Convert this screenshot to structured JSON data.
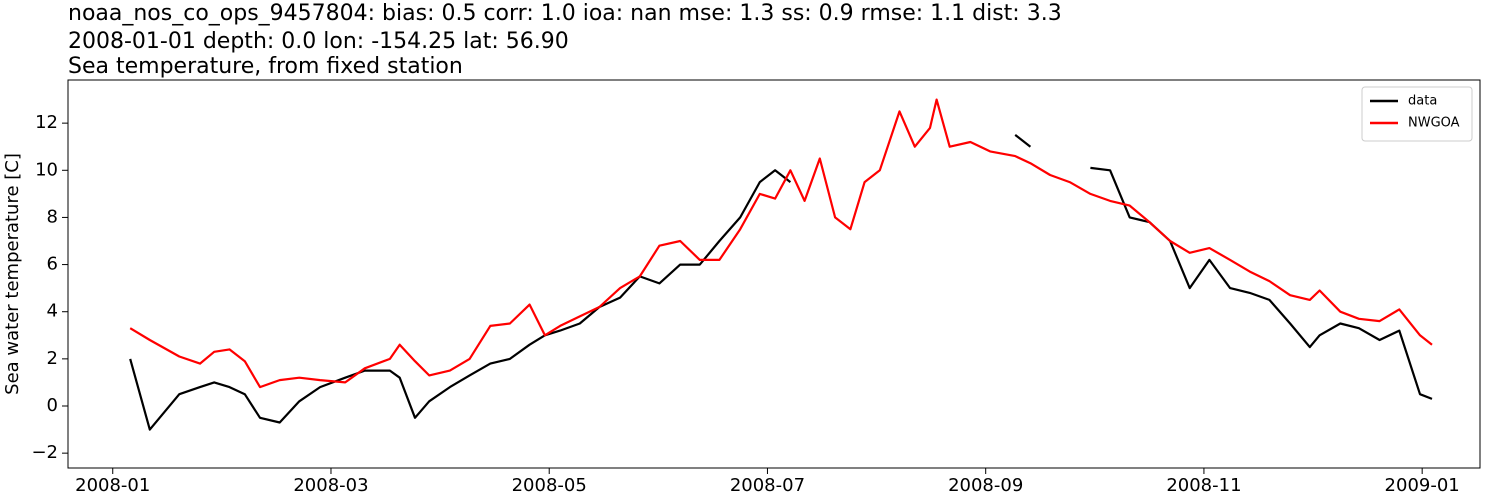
{
  "chart_data": {
    "type": "line",
    "title": [
      "noaa_nos_co_ops_9457804: bias: 0.5  corr: 1.0  ioa: nan  mse: 1.3  ss: 0.9  rmse: 1.1  dist: 3.3",
      "2008-01-01 depth: 0.0 lon: -154.25 lat: 56.90",
      "Sea temperature, from fixed station"
    ],
    "y_label": "Sea water temperature [C]",
    "x": [
      0.16,
      0.34,
      0.61,
      0.8,
      0.93,
      1.07,
      1.21,
      1.35,
      1.53,
      1.71,
      1.9,
      2.13,
      2.31,
      2.54,
      2.63,
      2.77,
      2.9,
      3.09,
      3.27,
      3.46,
      3.64,
      3.82,
      3.96,
      4.1,
      4.28,
      4.46,
      4.65,
      4.83,
      5.01,
      5.2,
      5.38,
      5.56,
      5.75,
      5.93,
      6.07,
      6.21,
      6.34,
      6.48,
      6.62,
      6.76,
      6.89,
      7.03,
      7.21,
      7.35,
      7.49,
      7.55,
      7.67,
      7.86,
      8.04,
      8.27,
      8.41,
      8.59,
      8.77,
      8.96,
      9.14,
      9.32,
      9.5,
      9.69,
      9.87,
      10.05,
      10.24,
      10.42,
      10.6,
      10.79,
      10.97,
      11.06,
      11.25,
      11.42,
      11.61,
      11.79,
      11.98,
      12.09
    ],
    "series": [
      {
        "name": "data",
        "color": "#000000",
        "values": [
          2.0,
          -1.0,
          0.5,
          0.8,
          1.0,
          0.8,
          0.5,
          -0.5,
          -0.7,
          0.2,
          0.8,
          1.2,
          1.5,
          1.5,
          1.2,
          -0.5,
          0.2,
          0.8,
          1.3,
          1.8,
          2.0,
          2.6,
          3.0,
          3.2,
          3.5,
          4.2,
          4.6,
          5.5,
          5.2,
          6.0,
          6.0,
          7.0,
          8.0,
          9.5,
          10.0,
          9.5,
          null,
          null,
          null,
          null,
          null,
          null,
          null,
          null,
          null,
          null,
          null,
          null,
          null,
          11.5,
          11.0,
          null,
          null,
          10.1,
          10.0,
          8.0,
          7.8,
          7.0,
          5.0,
          6.2,
          5.0,
          4.8,
          4.5,
          3.5,
          2.5,
          3.0,
          3.5,
          3.3,
          2.8,
          3.2,
          0.5,
          0.3
        ]
      },
      {
        "name": "NWGOA",
        "color": "#ff0000",
        "values": [
          3.3,
          2.8,
          2.1,
          1.8,
          2.3,
          2.4,
          1.9,
          0.8,
          1.1,
          1.2,
          1.1,
          1.0,
          1.6,
          2.0,
          2.6,
          1.9,
          1.3,
          1.5,
          2.0,
          3.4,
          3.5,
          4.3,
          3.0,
          3.4,
          3.8,
          4.2,
          5.0,
          5.5,
          6.8,
          7.0,
          6.2,
          6.2,
          7.5,
          9.0,
          8.8,
          10.0,
          8.7,
          10.5,
          8.0,
          7.5,
          9.5,
          10.0,
          12.5,
          11.0,
          11.8,
          13.0,
          11.0,
          11.2,
          10.8,
          10.6,
          10.3,
          9.8,
          9.5,
          9.0,
          8.7,
          8.5,
          7.8,
          7.0,
          6.5,
          6.7,
          6.2,
          5.7,
          5.3,
          4.7,
          4.5,
          4.9,
          4.0,
          3.7,
          3.6,
          4.1,
          3.0,
          2.6
        ]
      }
    ],
    "xlim": [
      -0.41,
      12.53
    ],
    "ylim": [
      -2.63,
      13.83
    ],
    "xticks": [
      {
        "value": 0,
        "label": "2008-01"
      },
      {
        "value": 2,
        "label": "2008-03"
      },
      {
        "value": 4,
        "label": "2008-05"
      },
      {
        "value": 6,
        "label": "2008-07"
      },
      {
        "value": 8,
        "label": "2008-09"
      },
      {
        "value": 10,
        "label": "2008-11"
      },
      {
        "value": 12,
        "label": "2009-01"
      }
    ],
    "yticks": [
      {
        "value": -2,
        "label": "−2"
      },
      0,
      2,
      4,
      6,
      8,
      10,
      12
    ],
    "legend": "upper right"
  }
}
